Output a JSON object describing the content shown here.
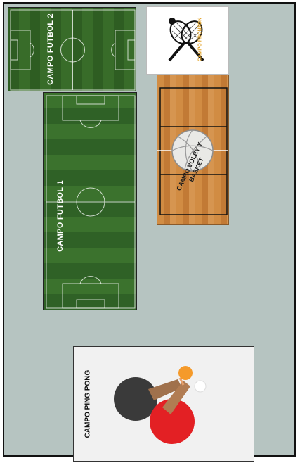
{
  "map": {
    "zones": {
      "futbol2": {
        "label": "CAMPO FUTBOL 2"
      },
      "futbol1": {
        "label": "CAMPO FUTBOL 1"
      },
      "fronton": {
        "label": "CAMPO FRONTON",
        "icon": "tennis-rackets-icon"
      },
      "voley_basket": {
        "label_line1": "CAMPO VOLEY Y",
        "label_line2": "BASKET",
        "icon": "volleyball-icon"
      },
      "ping_pong": {
        "label": "CAMPO PING PONG",
        "icon": "ping-pong-paddles-icon"
      }
    },
    "colors": {
      "background": "#b6c4c1",
      "grass_dark": "#2e5d22",
      "grass_light": "#3b722d",
      "wood": "#d18c43",
      "fronton_label": "#e3a52c",
      "paddle_black": "#3a3a3a",
      "paddle_red": "#e32024",
      "ball_orange": "#f59a2a"
    }
  }
}
